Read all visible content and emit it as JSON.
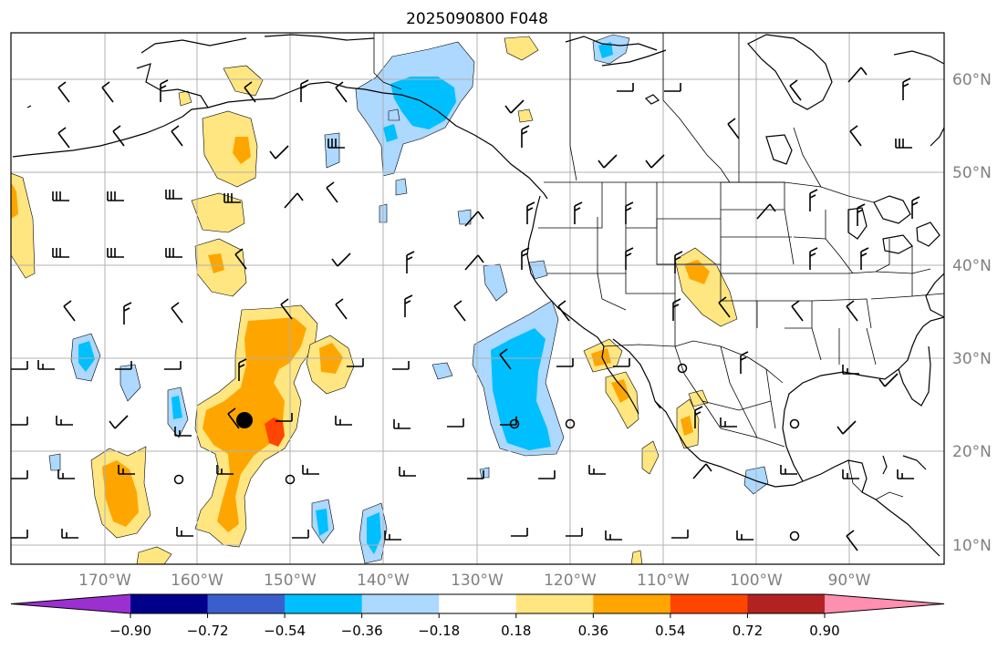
{
  "title": "2025090800 F048",
  "longitude_labels": [
    "170°W",
    "160°W",
    "150°W",
    "140°W",
    "130°W",
    "120°W",
    "110°W",
    "100°W",
    "90°W"
  ],
  "latitude_labels": [
    "60°N",
    "50°N",
    "40°N",
    "30°N",
    "20°N",
    "10°N"
  ],
  "colorbar": {
    "ticks": [
      "−0.90",
      "−0.72",
      "−0.54",
      "−0.36",
      "−0.18",
      "0.18",
      "0.36",
      "0.54",
      "0.72",
      "0.90"
    ],
    "colors": [
      "#9b30d0",
      "#00008b",
      "#3a5fcd",
      "#00bfff",
      "#add8ff",
      "#ffffff",
      "#ffe680",
      "#ffa500",
      "#ff4500",
      "#b22222",
      "#ff8fb0"
    ]
  },
  "colors": {
    "coast": "#000000",
    "grid": "#b0b0b0",
    "label": "#808080"
  }
}
